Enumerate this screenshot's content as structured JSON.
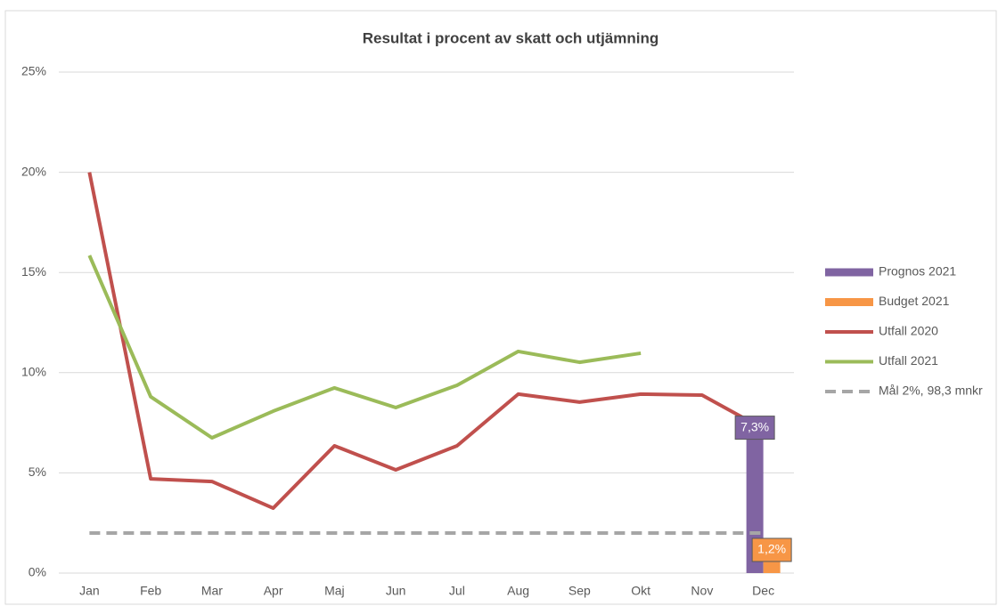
{
  "chart_data": {
    "type": "line",
    "title": "Resultat i procent av skatt och utjämning",
    "categories": [
      "Jan",
      "Feb",
      "Mar",
      "Apr",
      "Maj",
      "Jun",
      "Jul",
      "Aug",
      "Sep",
      "Okt",
      "Nov",
      "Dec"
    ],
    "ylim": [
      0,
      25
    ],
    "yticks": [
      {
        "value": 0,
        "label": "0%"
      },
      {
        "value": 5,
        "label": "5%"
      },
      {
        "value": 10,
        "label": "10%"
      },
      {
        "value": 15,
        "label": "15%"
      },
      {
        "value": 20,
        "label": "20%"
      },
      {
        "value": 25,
        "label": "25%"
      }
    ],
    "grid": true,
    "legend": "right",
    "series": [
      {
        "name": "Prognos 2021",
        "kind": "bar",
        "color": "#8064a2",
        "values": [
          null,
          null,
          null,
          null,
          null,
          null,
          null,
          null,
          null,
          null,
          null,
          7.3
        ],
        "value_labels": [
          null,
          null,
          null,
          null,
          null,
          null,
          null,
          null,
          null,
          null,
          null,
          "7,3%"
        ]
      },
      {
        "name": "Budget 2021",
        "kind": "bar",
        "color": "#f79646",
        "values": [
          null,
          null,
          null,
          null,
          null,
          null,
          null,
          null,
          null,
          null,
          null,
          1.2
        ],
        "value_labels": [
          null,
          null,
          null,
          null,
          null,
          null,
          null,
          null,
          null,
          null,
          null,
          "1,2%"
        ]
      },
      {
        "name": "Utfall 2020",
        "kind": "line",
        "color": "#c0504d",
        "values": [
          20,
          4.7,
          4.57,
          3.24,
          6.35,
          5.15,
          6.35,
          8.93,
          8.53,
          8.93,
          8.88,
          7.2
        ]
      },
      {
        "name": "Utfall 2021",
        "kind": "line",
        "color": "#9bbb59",
        "values": [
          15.85,
          8.8,
          6.75,
          8.08,
          9.24,
          8.26,
          9.37,
          11.06,
          10.52,
          10.97,
          null,
          null
        ]
      },
      {
        "name": "Mål 2%, 98,3 mnkr",
        "kind": "line",
        "dashed": true,
        "color": "#a6a6a6",
        "values": [
          2,
          2,
          2,
          2,
          2,
          2,
          2,
          2,
          2,
          2,
          2,
          2
        ]
      }
    ]
  }
}
